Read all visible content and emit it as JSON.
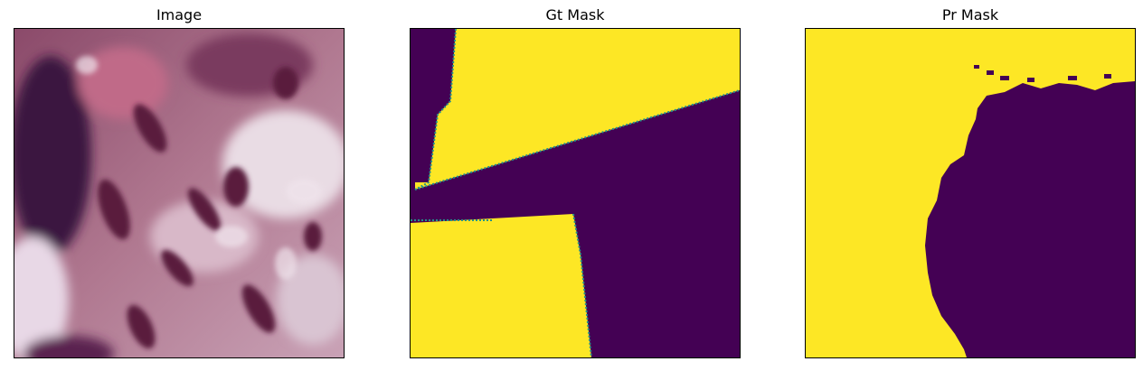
{
  "panels": [
    {
      "title": "Image"
    },
    {
      "title": "Gt Mask"
    },
    {
      "title": "Pr Mask"
    }
  ],
  "colors": {
    "mask_foreground": "#fde725",
    "mask_background": "#440154",
    "mask_edge": "#21918c",
    "tissue_light": "#e9d2dd",
    "tissue_pink": "#c98ba3",
    "tissue_dark": "#5a1a3e",
    "tissue_shadow": "#2a0d30"
  }
}
